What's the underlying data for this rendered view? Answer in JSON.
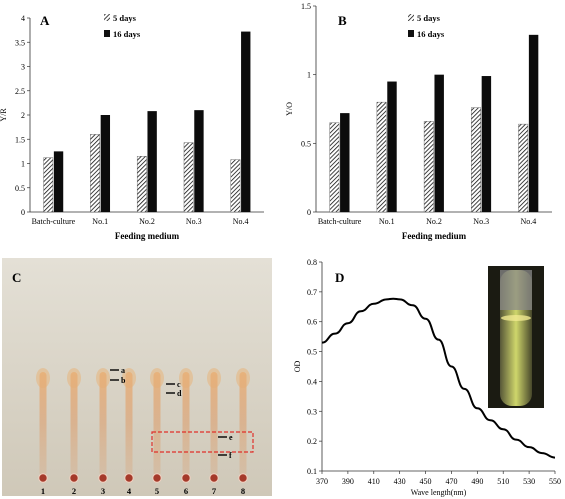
{
  "chart_data": [
    {
      "panel": "A",
      "type": "bar",
      "categories": [
        "Batch-culture",
        "No.1",
        "No.2",
        "No.3",
        "No.4"
      ],
      "series": [
        {
          "name": "5 days",
          "values": [
            1.12,
            1.6,
            1.15,
            1.43,
            1.08
          ],
          "pattern": "hatch"
        },
        {
          "name": "16 days",
          "values": [
            1.25,
            2.0,
            2.08,
            2.1,
            3.72
          ],
          "pattern": "solid"
        }
      ],
      "xlabel": "Feeding medium",
      "ylabel": "Y/R",
      "ylim": [
        0,
        4
      ],
      "yticks": [
        "0",
        "0.5",
        "1",
        "1.5",
        "2",
        "2.5",
        "3",
        "3.5",
        "4"
      ]
    },
    {
      "panel": "B",
      "type": "bar",
      "categories": [
        "Batch-culture",
        "No.1",
        "No.2",
        "No.3",
        "No.4"
      ],
      "series": [
        {
          "name": "5 days",
          "values": [
            0.65,
            0.8,
            0.66,
            0.76,
            0.64
          ],
          "pattern": "hatch"
        },
        {
          "name": "16 days",
          "values": [
            0.72,
            0.95,
            1.0,
            0.99,
            1.29
          ],
          "pattern": "solid"
        }
      ],
      "xlabel": "Feeding medium",
      "ylabel": "Y/O",
      "ylim": [
        0,
        1.5
      ],
      "yticks": [
        "0",
        "0.5",
        "1",
        "1.5"
      ]
    },
    {
      "panel": "D",
      "type": "line",
      "x": [
        370,
        380,
        390,
        400,
        410,
        420,
        425,
        430,
        440,
        450,
        460,
        470,
        480,
        490,
        500,
        510,
        520,
        530,
        540,
        550
      ],
      "series": [
        {
          "name": "",
          "values": [
            0.53,
            0.56,
            0.595,
            0.635,
            0.66,
            0.675,
            0.677,
            0.675,
            0.655,
            0.61,
            0.54,
            0.45,
            0.375,
            0.31,
            0.27,
            0.24,
            0.205,
            0.18,
            0.16,
            0.145
          ]
        }
      ],
      "xlabel": "Wave length(nm)",
      "ylabel": "OD",
      "xlim": [
        370,
        550
      ],
      "ylim": [
        0.1,
        0.8
      ],
      "xticks": [
        "370",
        "390",
        "410",
        "430",
        "450",
        "470",
        "490",
        "510",
        "530",
        "550"
      ],
      "yticks": [
        "0.1",
        "0.2",
        "0.3",
        "0.4",
        "0.5",
        "0.6",
        "0.7",
        "0.8"
      ]
    }
  ],
  "panel_c": {
    "letter": "C",
    "lane_numbers": [
      "1",
      "2",
      "3",
      "4",
      "5",
      "6",
      "7",
      "8"
    ],
    "band_labels": [
      "a",
      "b",
      "c",
      "d",
      "e",
      "f"
    ],
    "colors": {
      "plate": "#d8d2c4",
      "streak": "#d89a5a",
      "lane_number": "#d42020",
      "box": "#e0302a"
    }
  },
  "panel_letters": {
    "A": "A",
    "B": "B",
    "D": "D"
  }
}
